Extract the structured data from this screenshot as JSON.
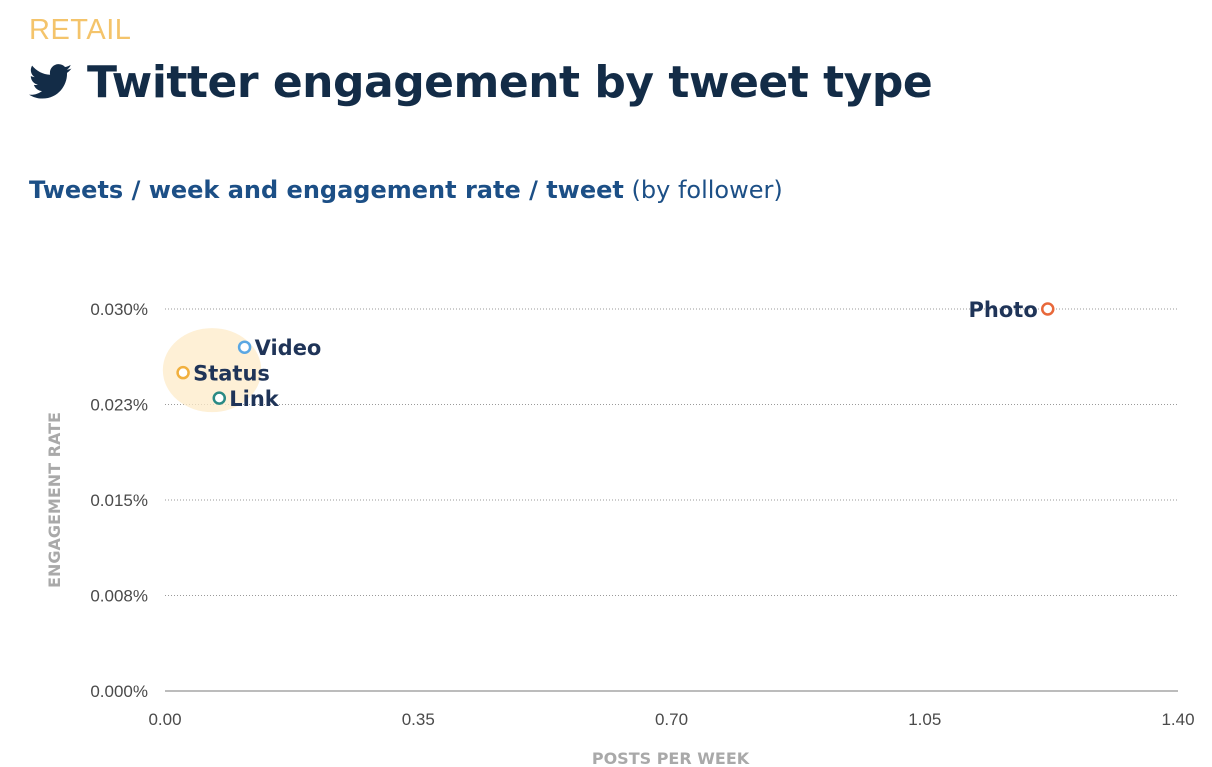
{
  "header": {
    "category": "RETAIL",
    "icon": "twitter-bird-icon",
    "title": "Twitter engagement by tweet type",
    "subtitle_main": "Tweets / week and engagement rate / tweet",
    "subtitle_suffix": "(by follower)"
  },
  "colors": {
    "category": "#f4c46b",
    "title": "#132c47",
    "subtitle": "#1c4f86",
    "point_label": "#1f3458",
    "axis_title": "#a9a9a9",
    "tick_label": "#4a4a4a",
    "grid": "#9a9a9a",
    "highlight": "#fdebc8"
  },
  "chart_data": {
    "type": "scatter",
    "title": "Tweets / week and engagement rate / tweet (by follower)",
    "xlabel": "POSTS PER WEEK",
    "ylabel": "ENGAGEMENT RATE",
    "xlim": [
      0,
      1.4
    ],
    "ylim": [
      0,
      0.03
    ],
    "x_ticks": [
      0,
      0.35,
      0.7,
      1.05,
      1.4
    ],
    "x_tick_labels": [
      "0.00",
      "0.35",
      "0.70",
      "1.05",
      "1.40"
    ],
    "y_ticks": [
      0,
      0.0075,
      0.015,
      0.0225,
      0.03
    ],
    "y_tick_labels": [
      "0.000%",
      "0.008%",
      "0.015%",
      "0.023%",
      "0.030%"
    ],
    "grid": "horizontal-dotted",
    "legend": "none",
    "points": [
      {
        "name": "Photo",
        "x": 1.22,
        "y": 0.03,
        "color": "#e8683a",
        "label_side": "left"
      },
      {
        "name": "Video",
        "x": 0.11,
        "y": 0.027,
        "color": "#5aa7e3",
        "label_side": "right"
      },
      {
        "name": "Status",
        "x": 0.025,
        "y": 0.025,
        "color": "#f1b03e",
        "label_side": "right"
      },
      {
        "name": "Link",
        "x": 0.075,
        "y": 0.023,
        "color": "#2a8a84",
        "label_side": "right"
      }
    ],
    "highlight": {
      "x": 0.065,
      "y": 0.0252,
      "rx": 0.068,
      "ry": 0.0033
    }
  }
}
